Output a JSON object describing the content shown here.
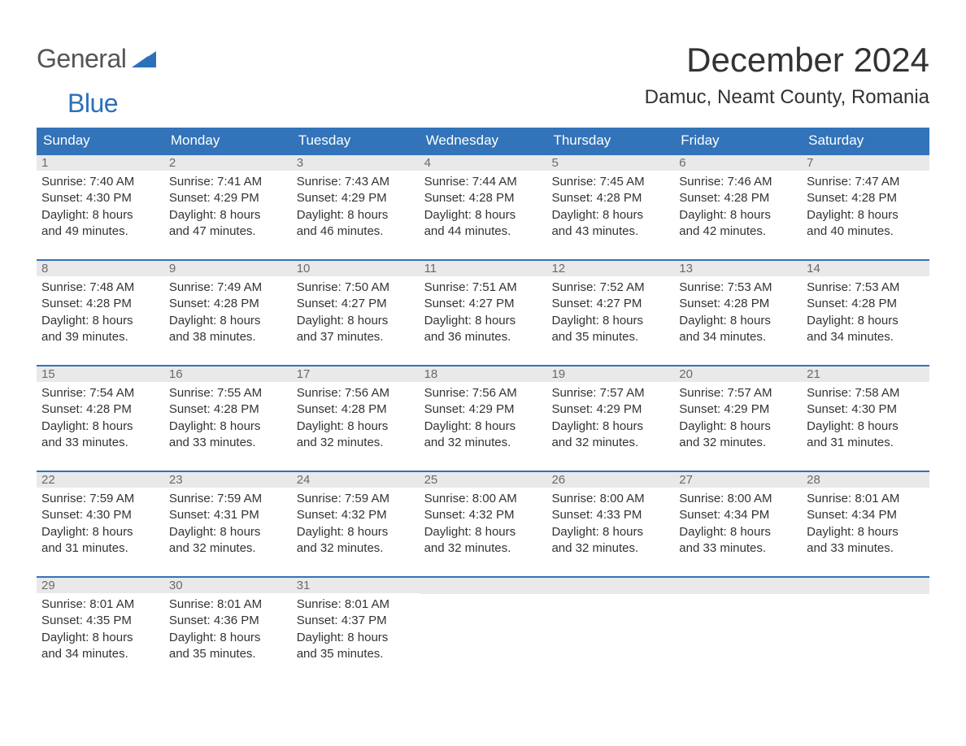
{
  "brand": {
    "text_general": "General",
    "text_blue": "Blue",
    "gray_color": "#555555",
    "blue_color": "#2b71b8"
  },
  "title": {
    "month": "December 2024",
    "location": "Damuc, Neamt County, Romania",
    "text_color": "#333333"
  },
  "colors": {
    "header_bg": "#3273b9",
    "header_text": "#ffffff",
    "daynum_bg": "#e9e9e9",
    "daynum_text": "#6a6a6a",
    "body_text": "#333333",
    "week_divider": "#3273b9",
    "background": "#ffffff"
  },
  "fonts": {
    "month_title_pt": 42,
    "location_pt": 24,
    "day_header_pt": 17,
    "cell_text_pt": 15,
    "logo_pt": 32
  },
  "day_headers": [
    "Sunday",
    "Monday",
    "Tuesday",
    "Wednesday",
    "Thursday",
    "Friday",
    "Saturday"
  ],
  "weeks": [
    [
      {
        "day": "1",
        "sunrise": "Sunrise: 7:40 AM",
        "sunset": "Sunset: 4:30 PM",
        "dl1": "Daylight: 8 hours",
        "dl2": "and 49 minutes."
      },
      {
        "day": "2",
        "sunrise": "Sunrise: 7:41 AM",
        "sunset": "Sunset: 4:29 PM",
        "dl1": "Daylight: 8 hours",
        "dl2": "and 47 minutes."
      },
      {
        "day": "3",
        "sunrise": "Sunrise: 7:43 AM",
        "sunset": "Sunset: 4:29 PM",
        "dl1": "Daylight: 8 hours",
        "dl2": "and 46 minutes."
      },
      {
        "day": "4",
        "sunrise": "Sunrise: 7:44 AM",
        "sunset": "Sunset: 4:28 PM",
        "dl1": "Daylight: 8 hours",
        "dl2": "and 44 minutes."
      },
      {
        "day": "5",
        "sunrise": "Sunrise: 7:45 AM",
        "sunset": "Sunset: 4:28 PM",
        "dl1": "Daylight: 8 hours",
        "dl2": "and 43 minutes."
      },
      {
        "day": "6",
        "sunrise": "Sunrise: 7:46 AM",
        "sunset": "Sunset: 4:28 PM",
        "dl1": "Daylight: 8 hours",
        "dl2": "and 42 minutes."
      },
      {
        "day": "7",
        "sunrise": "Sunrise: 7:47 AM",
        "sunset": "Sunset: 4:28 PM",
        "dl1": "Daylight: 8 hours",
        "dl2": "and 40 minutes."
      }
    ],
    [
      {
        "day": "8",
        "sunrise": "Sunrise: 7:48 AM",
        "sunset": "Sunset: 4:28 PM",
        "dl1": "Daylight: 8 hours",
        "dl2": "and 39 minutes."
      },
      {
        "day": "9",
        "sunrise": "Sunrise: 7:49 AM",
        "sunset": "Sunset: 4:28 PM",
        "dl1": "Daylight: 8 hours",
        "dl2": "and 38 minutes."
      },
      {
        "day": "10",
        "sunrise": "Sunrise: 7:50 AM",
        "sunset": "Sunset: 4:27 PM",
        "dl1": "Daylight: 8 hours",
        "dl2": "and 37 minutes."
      },
      {
        "day": "11",
        "sunrise": "Sunrise: 7:51 AM",
        "sunset": "Sunset: 4:27 PM",
        "dl1": "Daylight: 8 hours",
        "dl2": "and 36 minutes."
      },
      {
        "day": "12",
        "sunrise": "Sunrise: 7:52 AM",
        "sunset": "Sunset: 4:27 PM",
        "dl1": "Daylight: 8 hours",
        "dl2": "and 35 minutes."
      },
      {
        "day": "13",
        "sunrise": "Sunrise: 7:53 AM",
        "sunset": "Sunset: 4:28 PM",
        "dl1": "Daylight: 8 hours",
        "dl2": "and 34 minutes."
      },
      {
        "day": "14",
        "sunrise": "Sunrise: 7:53 AM",
        "sunset": "Sunset: 4:28 PM",
        "dl1": "Daylight: 8 hours",
        "dl2": "and 34 minutes."
      }
    ],
    [
      {
        "day": "15",
        "sunrise": "Sunrise: 7:54 AM",
        "sunset": "Sunset: 4:28 PM",
        "dl1": "Daylight: 8 hours",
        "dl2": "and 33 minutes."
      },
      {
        "day": "16",
        "sunrise": "Sunrise: 7:55 AM",
        "sunset": "Sunset: 4:28 PM",
        "dl1": "Daylight: 8 hours",
        "dl2": "and 33 minutes."
      },
      {
        "day": "17",
        "sunrise": "Sunrise: 7:56 AM",
        "sunset": "Sunset: 4:28 PM",
        "dl1": "Daylight: 8 hours",
        "dl2": "and 32 minutes."
      },
      {
        "day": "18",
        "sunrise": "Sunrise: 7:56 AM",
        "sunset": "Sunset: 4:29 PM",
        "dl1": "Daylight: 8 hours",
        "dl2": "and 32 minutes."
      },
      {
        "day": "19",
        "sunrise": "Sunrise: 7:57 AM",
        "sunset": "Sunset: 4:29 PM",
        "dl1": "Daylight: 8 hours",
        "dl2": "and 32 minutes."
      },
      {
        "day": "20",
        "sunrise": "Sunrise: 7:57 AM",
        "sunset": "Sunset: 4:29 PM",
        "dl1": "Daylight: 8 hours",
        "dl2": "and 32 minutes."
      },
      {
        "day": "21",
        "sunrise": "Sunrise: 7:58 AM",
        "sunset": "Sunset: 4:30 PM",
        "dl1": "Daylight: 8 hours",
        "dl2": "and 31 minutes."
      }
    ],
    [
      {
        "day": "22",
        "sunrise": "Sunrise: 7:59 AM",
        "sunset": "Sunset: 4:30 PM",
        "dl1": "Daylight: 8 hours",
        "dl2": "and 31 minutes."
      },
      {
        "day": "23",
        "sunrise": "Sunrise: 7:59 AM",
        "sunset": "Sunset: 4:31 PM",
        "dl1": "Daylight: 8 hours",
        "dl2": "and 32 minutes."
      },
      {
        "day": "24",
        "sunrise": "Sunrise: 7:59 AM",
        "sunset": "Sunset: 4:32 PM",
        "dl1": "Daylight: 8 hours",
        "dl2": "and 32 minutes."
      },
      {
        "day": "25",
        "sunrise": "Sunrise: 8:00 AM",
        "sunset": "Sunset: 4:32 PM",
        "dl1": "Daylight: 8 hours",
        "dl2": "and 32 minutes."
      },
      {
        "day": "26",
        "sunrise": "Sunrise: 8:00 AM",
        "sunset": "Sunset: 4:33 PM",
        "dl1": "Daylight: 8 hours",
        "dl2": "and 32 minutes."
      },
      {
        "day": "27",
        "sunrise": "Sunrise: 8:00 AM",
        "sunset": "Sunset: 4:34 PM",
        "dl1": "Daylight: 8 hours",
        "dl2": "and 33 minutes."
      },
      {
        "day": "28",
        "sunrise": "Sunrise: 8:01 AM",
        "sunset": "Sunset: 4:34 PM",
        "dl1": "Daylight: 8 hours",
        "dl2": "and 33 minutes."
      }
    ],
    [
      {
        "day": "29",
        "sunrise": "Sunrise: 8:01 AM",
        "sunset": "Sunset: 4:35 PM",
        "dl1": "Daylight: 8 hours",
        "dl2": "and 34 minutes."
      },
      {
        "day": "30",
        "sunrise": "Sunrise: 8:01 AM",
        "sunset": "Sunset: 4:36 PM",
        "dl1": "Daylight: 8 hours",
        "dl2": "and 35 minutes."
      },
      {
        "day": "31",
        "sunrise": "Sunrise: 8:01 AM",
        "sunset": "Sunset: 4:37 PM",
        "dl1": "Daylight: 8 hours",
        "dl2": "and 35 minutes."
      },
      {
        "empty": true
      },
      {
        "empty": true
      },
      {
        "empty": true
      },
      {
        "empty": true
      }
    ]
  ]
}
